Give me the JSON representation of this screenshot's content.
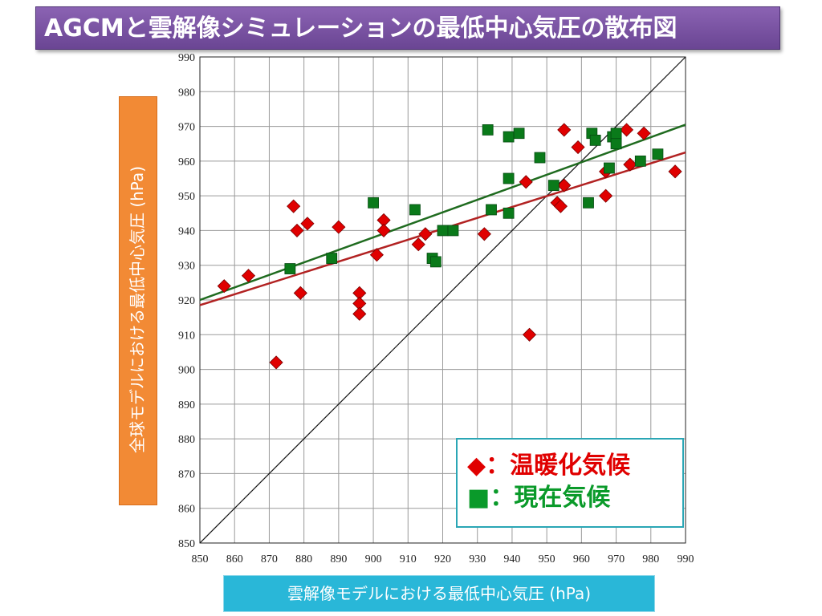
{
  "title": "AGCMと雲解像シミュレーションの最低中心気圧の散布図",
  "chart_data": {
    "type": "scatter",
    "xlabel": "雲解像モデルにおける最低中心気圧 (hPa)",
    "ylabel": "全球モデルにおける最低中心気圧 (hPa)",
    "xlim": [
      850,
      990
    ],
    "ylim": [
      850,
      990
    ],
    "xticks": [
      850,
      860,
      870,
      880,
      890,
      900,
      910,
      920,
      930,
      940,
      950,
      960,
      970,
      980,
      990
    ],
    "yticks": [
      850,
      860,
      870,
      880,
      890,
      900,
      910,
      920,
      930,
      940,
      950,
      960,
      970,
      980,
      990
    ],
    "grid": true,
    "legend_position": "bottom-right",
    "identity_line": [
      [
        850,
        850
      ],
      [
        990,
        990
      ]
    ],
    "series": [
      {
        "name": "温暖化気候",
        "marker": "diamond",
        "color": "#e00000",
        "points": [
          [
            857,
            924
          ],
          [
            864,
            927
          ],
          [
            872,
            902
          ],
          [
            877,
            947
          ],
          [
            878,
            940
          ],
          [
            879,
            922
          ],
          [
            881,
            942
          ],
          [
            890,
            941
          ],
          [
            896,
            922
          ],
          [
            896,
            919
          ],
          [
            896,
            916
          ],
          [
            901,
            933
          ],
          [
            903,
            943
          ],
          [
            903,
            940
          ],
          [
            913,
            936
          ],
          [
            915,
            939
          ],
          [
            932,
            939
          ],
          [
            944,
            954
          ],
          [
            945,
            910
          ],
          [
            953,
            948
          ],
          [
            954,
            947
          ],
          [
            955,
            953
          ],
          [
            955,
            969
          ],
          [
            959,
            964
          ],
          [
            967,
            957
          ],
          [
            967,
            950
          ],
          [
            973,
            969
          ],
          [
            974,
            959
          ],
          [
            978,
            968
          ],
          [
            987,
            957
          ]
        ],
        "trendline": [
          [
            850,
            918.5
          ],
          [
            990,
            962.5
          ]
        ],
        "trend_color": "#b22222"
      },
      {
        "name": "現在気候",
        "marker": "square",
        "color": "#0a7a1a",
        "points": [
          [
            876,
            929
          ],
          [
            888,
            932
          ],
          [
            900,
            948
          ],
          [
            912,
            946
          ],
          [
            917,
            932
          ],
          [
            918,
            931
          ],
          [
            920,
            940
          ],
          [
            923,
            940
          ],
          [
            934,
            946
          ],
          [
            933,
            969
          ],
          [
            939,
            967
          ],
          [
            939,
            955
          ],
          [
            939,
            945
          ],
          [
            942,
            968
          ],
          [
            948,
            961
          ],
          [
            952,
            953
          ],
          [
            962,
            948
          ],
          [
            963,
            968
          ],
          [
            964,
            966
          ],
          [
            968,
            958
          ],
          [
            969,
            967
          ],
          [
            970,
            965
          ],
          [
            970,
            968
          ],
          [
            977,
            960
          ],
          [
            982,
            962
          ]
        ],
        "trendline": [
          [
            850,
            920
          ],
          [
            990,
            970.5
          ]
        ],
        "trend_color": "#1f6b1f"
      }
    ]
  },
  "legend": {
    "items": [
      {
        "symbol": "◆",
        "label": "：温暖化気候"
      },
      {
        "symbol": "■",
        "label": "：現在気候"
      }
    ]
  }
}
